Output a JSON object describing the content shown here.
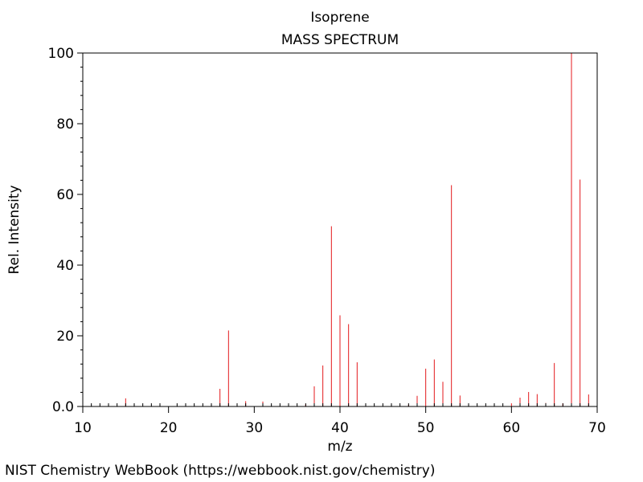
{
  "chart_data": {
    "type": "bar",
    "title": "Isoprene",
    "subtitle": "MASS SPECTRUM",
    "xlabel": "m/z",
    "ylabel": "Rel. Intensity",
    "xlim": [
      10,
      70
    ],
    "ylim": [
      0,
      100
    ],
    "x_ticks": [
      10,
      20,
      30,
      40,
      50,
      60,
      70
    ],
    "y_ticks": [
      "0.0",
      "20",
      "40",
      "60",
      "80",
      "100"
    ],
    "y_tick_values": [
      0,
      20,
      40,
      60,
      80,
      100
    ],
    "bar_color": "#e41a1c",
    "grid": false,
    "peaks": [
      {
        "mz": 15,
        "intensity": 2.3
      },
      {
        "mz": 25,
        "intensity": 0.7
      },
      {
        "mz": 26,
        "intensity": 5.0
      },
      {
        "mz": 27,
        "intensity": 21.5
      },
      {
        "mz": 29,
        "intensity": 1.5
      },
      {
        "mz": 31,
        "intensity": 1.4
      },
      {
        "mz": 36,
        "intensity": 0.6
      },
      {
        "mz": 37,
        "intensity": 5.7
      },
      {
        "mz": 38,
        "intensity": 11.6
      },
      {
        "mz": 39,
        "intensity": 51.0
      },
      {
        "mz": 40,
        "intensity": 25.8
      },
      {
        "mz": 41,
        "intensity": 23.3
      },
      {
        "mz": 42,
        "intensity": 12.5
      },
      {
        "mz": 43,
        "intensity": 0.5
      },
      {
        "mz": 48,
        "intensity": 0.5
      },
      {
        "mz": 49,
        "intensity": 3.0
      },
      {
        "mz": 50,
        "intensity": 10.7
      },
      {
        "mz": 51,
        "intensity": 13.3
      },
      {
        "mz": 52,
        "intensity": 7.0
      },
      {
        "mz": 53,
        "intensity": 62.6
      },
      {
        "mz": 54,
        "intensity": 3.1
      },
      {
        "mz": 60,
        "intensity": 0.9
      },
      {
        "mz": 61,
        "intensity": 2.5
      },
      {
        "mz": 62,
        "intensity": 4.1
      },
      {
        "mz": 63,
        "intensity": 3.5
      },
      {
        "mz": 64,
        "intensity": 1.0
      },
      {
        "mz": 65,
        "intensity": 12.3
      },
      {
        "mz": 66,
        "intensity": 0.9
      },
      {
        "mz": 67,
        "intensity": 100.0
      },
      {
        "mz": 68,
        "intensity": 64.2
      },
      {
        "mz": 69,
        "intensity": 3.4
      }
    ]
  },
  "footer": {
    "credit": "NIST Chemistry WebBook (https://webbook.nist.gov/chemistry)"
  }
}
